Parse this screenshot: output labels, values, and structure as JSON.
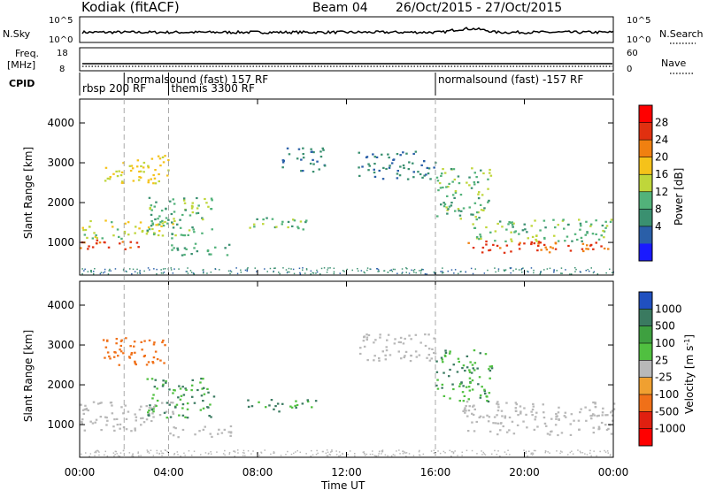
{
  "header": {
    "station": "Kodiak (fitACF)",
    "beam": "Beam 04",
    "date_range": "26/Oct/2015 - 27/Oct/2015"
  },
  "nsky_panel": {
    "left_label": "N.Sky",
    "right_label": "N.Search",
    "left_ticks": [
      "10^5",
      "10^0"
    ],
    "right_ticks": [
      "10^5",
      "10^0"
    ]
  },
  "freq_panel": {
    "left_label_1": "Freq.",
    "left_label_2": "[MHz]",
    "right_label": "Nave",
    "left_ticks": [
      "18",
      "8"
    ],
    "right_ticks": [
      "60",
      "0"
    ]
  },
  "cpid_panel": {
    "label": "CPID",
    "programs": [
      {
        "name": "rbsp 200 RF",
        "start_hour": 0
      },
      {
        "name": "normalsound (fast) 157 RF",
        "start_hour": 2
      },
      {
        "name": "themis 3300 RF",
        "start_hour": 4
      },
      {
        "name": "normalsound (fast) -157 RF",
        "start_hour": 16
      }
    ]
  },
  "x_axis": {
    "label": "Time UT",
    "ticks": [
      "00:00",
      "04:00",
      "08:00",
      "12:00",
      "16:00",
      "20:00",
      "00:00"
    ],
    "range_hours": [
      0,
      24
    ]
  },
  "power_colorbar": {
    "label": "Power [dB]",
    "ticks": [
      "4",
      "8",
      "12",
      "16",
      "20",
      "24",
      "28"
    ],
    "colors": [
      "#1a1aff",
      "#2a5fa8",
      "#3a9070",
      "#52b27a",
      "#bfd63a",
      "#f5c21a",
      "#f08010",
      "#e03010",
      "#ff0000"
    ]
  },
  "velocity_colorbar": {
    "label": "Velocity [m s^-1]",
    "ticks": [
      "1000",
      "500",
      "100",
      "25",
      "-25",
      "-100",
      "-500",
      "-1000"
    ],
    "colors": [
      "#2050c0",
      "#3a7a60",
      "#3ea040",
      "#50c040",
      "#b8b8b8",
      "#f0a030",
      "#f07018",
      "#e02010",
      "#ff0000"
    ]
  },
  "chart_data": [
    {
      "type": "heatmap",
      "title": "",
      "xlabel": "Time UT",
      "ylabel": "Slant Range [km]",
      "y_ticks": [
        1000,
        2000,
        3000,
        4000
      ],
      "xlim": [
        0,
        24
      ],
      "ylim": [
        180,
        4600
      ],
      "quantity": "Power [dB]",
      "regions": [
        {
          "t0": 0.0,
          "t1": 3.2,
          "r0": 850,
          "r1": 1100,
          "value": 28
        },
        {
          "t0": 0.0,
          "t1": 4.3,
          "r0": 1100,
          "r1": 1600,
          "value": 18
        },
        {
          "t0": 1.0,
          "t1": 4.0,
          "r0": 2500,
          "r1": 3200,
          "value": 20
        },
        {
          "t0": 3.0,
          "t1": 6.0,
          "r0": 1200,
          "r1": 2200,
          "value": 14
        },
        {
          "t0": 4.0,
          "t1": 6.8,
          "r0": 700,
          "r1": 1000,
          "value": 12
        },
        {
          "t0": 7.5,
          "t1": 10.6,
          "r0": 1350,
          "r1": 1650,
          "value": 14
        },
        {
          "t0": 9.0,
          "t1": 11.0,
          "r0": 2800,
          "r1": 3400,
          "value": 8
        },
        {
          "t0": 12.5,
          "t1": 16.0,
          "r0": 2600,
          "r1": 3300,
          "value": 8
        },
        {
          "t0": 16.0,
          "t1": 18.5,
          "r0": 1600,
          "r1": 2900,
          "value": 14
        },
        {
          "t0": 17.2,
          "t1": 24.0,
          "r0": 750,
          "r1": 1050,
          "value": 28
        },
        {
          "t0": 17.5,
          "t1": 24.0,
          "r0": 1050,
          "r1": 1600,
          "value": 14
        }
      ]
    },
    {
      "type": "heatmap",
      "title": "",
      "xlabel": "Time UT",
      "ylabel": "Slant Range [km]",
      "y_ticks": [
        1000,
        2000,
        3000,
        4000
      ],
      "xlim": [
        0,
        24
      ],
      "ylim": [
        180,
        4600
      ],
      "quantity": "Velocity [m s^-1]",
      "regions": [
        {
          "t0": 0.0,
          "t1": 3.2,
          "r0": 850,
          "r1": 1100,
          "value": 0
        },
        {
          "t0": 0.0,
          "t1": 4.3,
          "r0": 1100,
          "r1": 1600,
          "value": 0
        },
        {
          "t0": 1.0,
          "t1": 4.0,
          "r0": 2500,
          "r1": 3200,
          "value": -300
        },
        {
          "t0": 3.0,
          "t1": 6.0,
          "r0": 1200,
          "r1": 2200,
          "value": 100
        },
        {
          "t0": 4.0,
          "t1": 6.8,
          "r0": 700,
          "r1": 1000,
          "value": 0
        },
        {
          "t0": 7.5,
          "t1": 10.6,
          "r0": 1350,
          "r1": 1650,
          "value": 100
        },
        {
          "t0": 12.5,
          "t1": 16.0,
          "r0": 2600,
          "r1": 3300,
          "value": 0
        },
        {
          "t0": 16.0,
          "t1": 18.5,
          "r0": 1600,
          "r1": 2900,
          "value": 100
        },
        {
          "t0": 17.2,
          "t1": 24.0,
          "r0": 750,
          "r1": 1600,
          "value": 0
        }
      ]
    }
  ]
}
